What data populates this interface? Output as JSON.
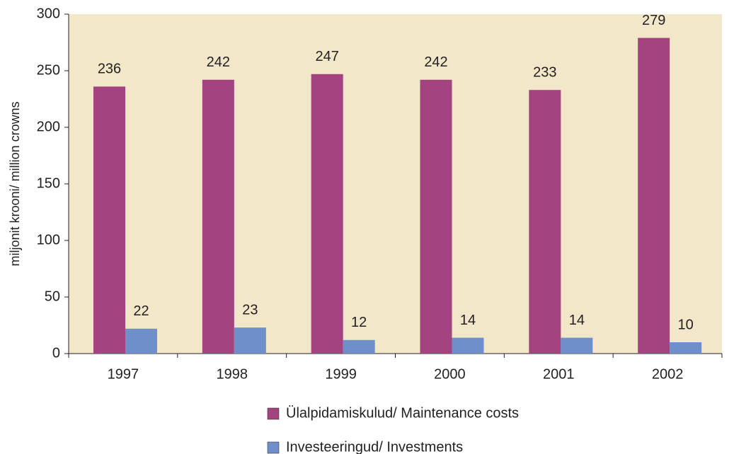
{
  "chart_data": {
    "type": "bar",
    "y_label": "miljonit krooni/ million crowns",
    "categories": [
      "1997",
      "1998",
      "1999",
      "2000",
      "2001",
      "2002"
    ],
    "series": [
      {
        "name": "Ülalpidamiskulud/ Maintenance costs",
        "color": "#a3437f",
        "values": [
          236,
          242,
          247,
          242,
          233,
          279
        ]
      },
      {
        "name": "Investeeringud/ Investments",
        "color": "#6f8fcb",
        "values": [
          22,
          23,
          12,
          14,
          14,
          10
        ]
      }
    ],
    "ylim": [
      0,
      300
    ],
    "yticks": [
      0,
      50,
      100,
      150,
      200,
      250,
      300
    ],
    "plot_background": "#f3e7c9"
  }
}
